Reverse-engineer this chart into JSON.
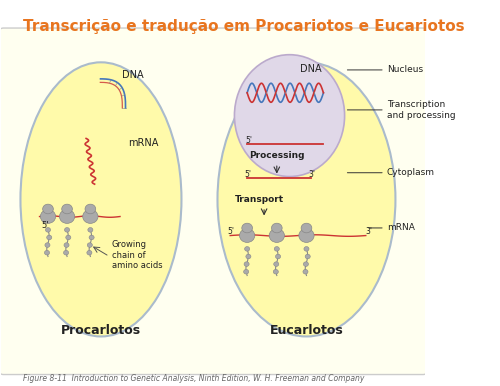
{
  "title": "Transcrição e tradução em Procariotos e Eucariotos",
  "title_color": "#E87520",
  "title_fontsize": 11,
  "background_color": "#FFFFF0",
  "outer_bg": "#FFFFFF",
  "caption": "Figure 8-11  Introduction to Genetic Analysis, Ninth Edition, W. H. Freeman and Company",
  "caption_fontsize": 5.5,
  "cell_fill": "#FFFAAA",
  "cell_edge": "#AABBCC",
  "prokaryote_label": "Procarlotos",
  "eukaryote_label": "Eucarlotos",
  "labels": {
    "DNA_pro": "DNA",
    "mRNA_pro": "mRNA",
    "growing_chain": "Growing\nchain of\namino acids",
    "five_prime_pro": "5'",
    "DNA_eu": "DNA",
    "nucleus": "Nucleus",
    "transcription": "Transcription\nand processing",
    "cytoplasm": "Cytoplasm",
    "mRNA_eu": "mRNA",
    "processing": "Processing",
    "transport": "Transport",
    "five_prime_eu1": "5'",
    "three_prime_eu1": "3'",
    "five_prime_eu2": "5'",
    "three_prime_eu2": "3'"
  },
  "label_color": "#222222",
  "annotation_color": "#333333",
  "dna_blue": "#4477BB",
  "dna_red": "#CC3333",
  "ribosome_color": "#AAAAAA",
  "nucleus_fill": "#E0D8E8"
}
